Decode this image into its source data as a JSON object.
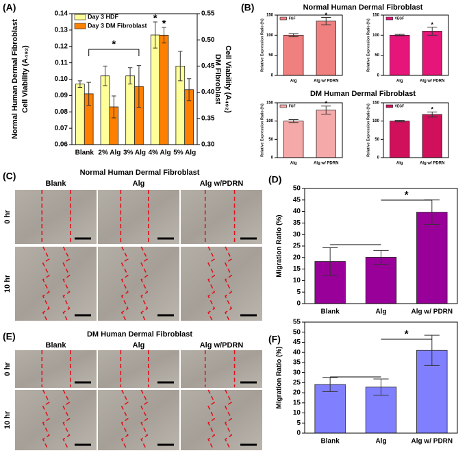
{
  "figure": {
    "panel_labels": [
      "(A)",
      "(B)",
      "(C)",
      "(D)",
      "(E)",
      "(F)"
    ],
    "b_titles": [
      "Normal Human Dermal Fibroblast",
      "DM Human Dermal Fibroblast"
    ],
    "micrographs": [
      {
        "title": "Normal Human Dermal Fibroblast",
        "columns": [
          "Blank",
          "Alg",
          "Alg w/PDRN"
        ],
        "rows": [
          "0 hr",
          "10 hr"
        ]
      },
      {
        "title": "DM Human Dermal Fibroblast",
        "columns": [
          "Blank",
          "Alg",
          "Alg w/PDRN"
        ],
        "rows": [
          "0 hr",
          "10 hr"
        ]
      }
    ]
  },
  "chart_data": [
    {
      "type": "bar",
      "categories": [
        "Blank",
        "2% Alg",
        "3% Alg",
        "4% Alg",
        "5% Alg"
      ],
      "ylabel": [
        "Normal Human Dermal Fibroblast",
        "Cell Viability (A₄₉₂)"
      ],
      "y2label": [
        "DM Fibroblast",
        "Cell Viability (A₄₉₂)"
      ],
      "ylim": [
        0.06,
        0.14
      ],
      "yticks": [
        0.06,
        0.07,
        0.08,
        0.09,
        {
          "value": 0.1,
          "label": "0.10"
        },
        0.11,
        0.12,
        0.13,
        0.14
      ],
      "y2lim": [
        0.3,
        0.55
      ],
      "y2ticks": [
        {
          "value": 0.3,
          "label": "0.30"
        },
        0.35,
        {
          "value": 0.4,
          "label": "0.40"
        },
        0.45,
        {
          "value": 0.5,
          "label": "0.50"
        },
        0.55
      ],
      "legend": "upper left",
      "series": [
        {
          "name": "Day 3 HDF",
          "color": "#ffff99",
          "values": [
            0.097,
            0.102,
            0.102,
            0.127,
            0.108
          ],
          "errors": [
            0.002,
            0.006,
            0.005,
            0.008,
            0.009
          ]
        },
        {
          "name": "Day 3 DM Fibroblast",
          "color": "#ff8000",
          "axis": "y2",
          "values": [
            0.397,
            0.372,
            0.411,
            0.509,
            0.405
          ],
          "errors": [
            0.022,
            0.021,
            0.04,
            0.015,
            0.021
          ]
        }
      ],
      "annotations": [
        "*",
        "*",
        "*"
      ]
    },
    {
      "type": "bar",
      "categories": [
        "Alg",
        "Alg w/ PDRN"
      ],
      "ylabel": "Relative Expression Ratio (%)",
      "ylim": [
        0,
        150
      ],
      "yticks": [
        0,
        50,
        100,
        150
      ],
      "legend": "upper left",
      "series": [
        {
          "name": "FGF",
          "color": "#f08080",
          "values": [
            100,
            135
          ],
          "errors": [
            4,
            9
          ]
        }
      ],
      "annotations": [
        "*"
      ]
    },
    {
      "type": "bar",
      "categories": [
        "Alg",
        "Alg w/ PDRN"
      ],
      "ylabel": "Relative Expression Ratio (%)",
      "ylim": [
        0,
        150
      ],
      "yticks": [
        0,
        50,
        100,
        150
      ],
      "legend": "upper left",
      "series": [
        {
          "name": "VEGF",
          "color": "#e6157a",
          "values": [
            100,
            110
          ],
          "errors": [
            2,
            10
          ]
        }
      ],
      "annotations": [
        "*"
      ]
    },
    {
      "type": "bar",
      "categories": [
        "Alg",
        "Alg w/ PDRN"
      ],
      "ylabel": "Relative Expression Ratio (%)",
      "ylim": [
        0,
        150
      ],
      "yticks": [
        0,
        50,
        100,
        150
      ],
      "legend": "upper left",
      "series": [
        {
          "name": "FGF",
          "color": "#f5a9a9",
          "values": [
            100,
            130
          ],
          "errors": [
            4,
            11
          ]
        }
      ],
      "annotations": [
        "*"
      ]
    },
    {
      "type": "bar",
      "categories": [
        "Alg",
        "Alg w/ PDRN"
      ],
      "ylabel": "Relative Expression Ratio (%)",
      "ylim": [
        0,
        150
      ],
      "yticks": [
        0,
        50,
        100,
        150
      ],
      "legend": "upper left",
      "series": [
        {
          "name": "VEGF",
          "color": "#d0105a",
          "values": [
            100,
            118
          ],
          "errors": [
            2,
            7
          ]
        }
      ],
      "annotations": [
        "*"
      ]
    },
    {
      "type": "bar",
      "categories": [
        "Blank",
        "Alg",
        "Alg w/ PDRN"
      ],
      "ylabel": "Migration Ratio (%)",
      "ylim": [
        0,
        50
      ],
      "yticks": [
        0,
        5,
        10,
        15,
        20,
        25,
        30,
        35,
        40,
        45,
        50
      ],
      "series": [
        {
          "color": "#990099",
          "values": [
            18.3,
            20.1,
            39.7
          ],
          "errors": [
            6,
            3,
            5.3
          ]
        }
      ],
      "annotations": [
        "*"
      ]
    },
    {
      "type": "bar",
      "categories": [
        "Blank",
        "Alg",
        "Alg w/ PDRN"
      ],
      "ylabel": "Migration Ratio (%)",
      "ylim": [
        0,
        55
      ],
      "yticks": [
        0,
        5,
        10,
        15,
        20,
        25,
        30,
        35,
        40,
        45,
        50,
        55
      ],
      "series": [
        {
          "color": "#8080ff",
          "values": [
            24.1,
            22.8,
            41
          ],
          "errors": [
            3.5,
            4,
            7.5
          ]
        }
      ],
      "annotations": [
        "*"
      ]
    }
  ]
}
